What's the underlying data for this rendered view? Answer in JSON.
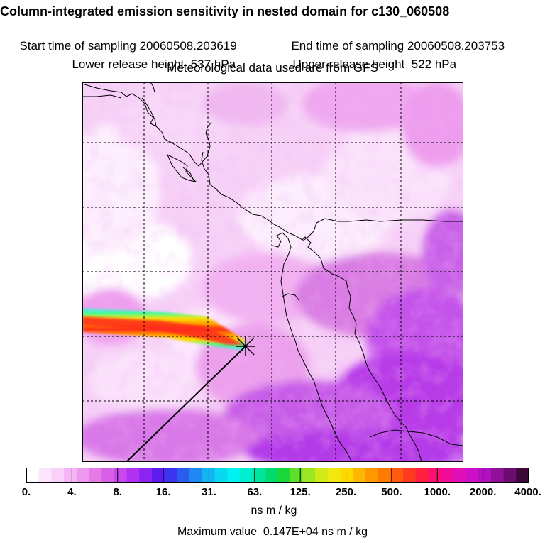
{
  "header": {
    "title": "Column-integrated emission sensitivity in nested domain for c130_060508",
    "start_label": "Start time of sampling",
    "start_value": "20060508.203619",
    "end_label": "End time of sampling",
    "end_value": "20060508.203753",
    "lower_label": "Lower release height",
    "lower_value": "537 hPa",
    "upper_label": "Upper release height",
    "upper_value": "522 hPa",
    "met_line": "Meteorological data used are from GFS"
  },
  "map": {
    "description_colors": {
      "background_low": "#ffffff",
      "light_pink": "#fbd8fb",
      "pink": "#f3a6f3",
      "magenta": "#dd6ddd",
      "purple": "#b733e6",
      "plume_red": "#ff2020",
      "plume_orange": "#ff9900",
      "plume_yellow": "#ffe000",
      "plume_green": "#33cc33",
      "plume_blue": "#3399ff"
    }
  },
  "colorbar": {
    "units": "ns m / kg",
    "ticks": [
      "0.",
      "4.",
      "8.",
      "16.",
      "31.",
      "63.",
      "125.",
      "250.",
      "500.",
      "1000.",
      "2000.",
      "4000."
    ],
    "colors": [
      "#ffffff",
      "#fde6fd",
      "#fad0fa",
      "#f5b6f5",
      "#ee98ee",
      "#e57be5",
      "#d860e6",
      "#c847ee",
      "#b230f0",
      "#8b24ee",
      "#5c1cf0",
      "#3b33ee",
      "#2a5cf0",
      "#1f88f2",
      "#14b4f2",
      "#0ad8f0",
      "#00f2f0",
      "#00eed0",
      "#00e6a0",
      "#00dc70",
      "#18d83a",
      "#5ce02a",
      "#9ce622",
      "#d0ea18",
      "#f0e810",
      "#ffd800",
      "#ffb800",
      "#ff9800",
      "#ff7a00",
      "#ff5a10",
      "#ff3a20",
      "#ff2040",
      "#ff1070",
      "#f00c98",
      "#e010b8",
      "#cc10c8",
      "#b010c0",
      "#901098",
      "#6a0c70",
      "#3c0838"
    ]
  },
  "footer": {
    "max_label": "Maximum value",
    "max_value": "0.147E+04 ns m / kg"
  }
}
